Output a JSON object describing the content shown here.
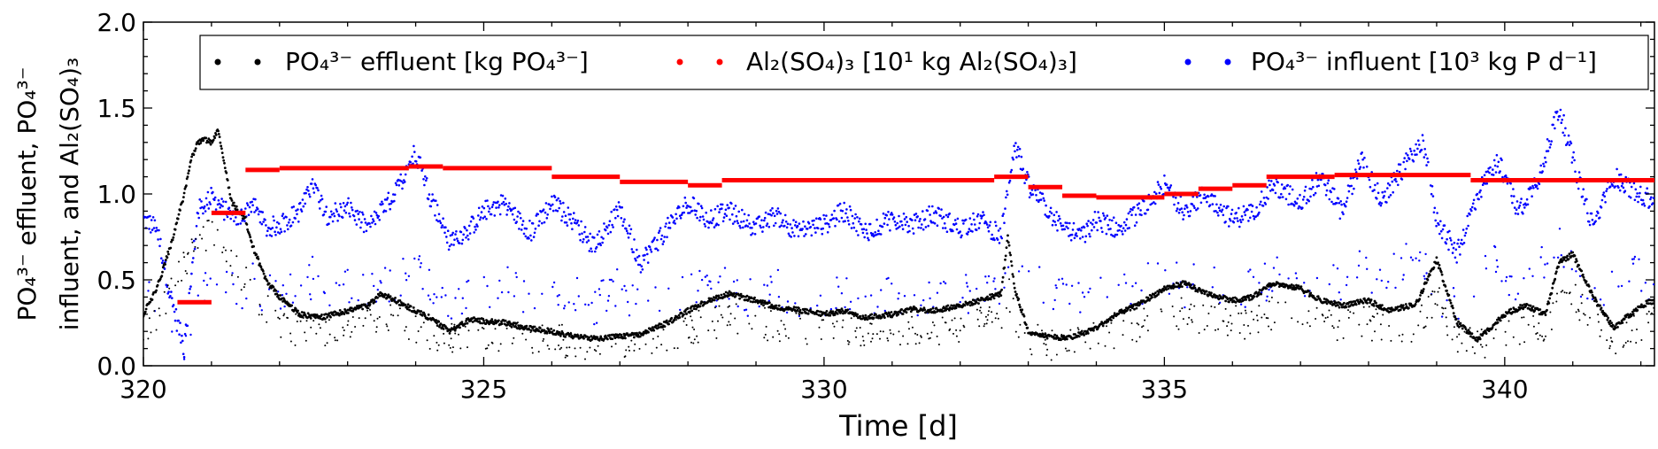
{
  "chart_data": {
    "type": "scatter",
    "xlabel": "Time [d]",
    "ylabel_line1": "PO₄³⁻ effluent, PO₄³⁻",
    "ylabel_line2": "influent, and Al₂(SO₄)₃",
    "xlim": [
      320,
      342.2
    ],
    "ylim": [
      0.0,
      2.0
    ],
    "xticks": [
      320,
      325,
      330,
      335,
      340
    ],
    "yticks": [
      0.0,
      0.5,
      1.0,
      1.5,
      2.0
    ],
    "xtick_labels": [
      "320",
      "325",
      "330",
      "335",
      "340"
    ],
    "ytick_labels": [
      "0.0",
      "0.5",
      "1.0",
      "1.5",
      "2.0"
    ],
    "legend_position": "top",
    "series": [
      {
        "name": "PO₄³⁻ effluent [kg PO₄³⁻]",
        "color": "#000000",
        "x": [
          320.0,
          320.2,
          320.4,
          320.6,
          320.7,
          320.8,
          320.9,
          321.0,
          321.1,
          321.2,
          321.3,
          321.5,
          321.6,
          321.8,
          322.0,
          322.3,
          322.6,
          323.0,
          323.3,
          323.5,
          323.7,
          324.0,
          324.2,
          324.5,
          324.8,
          325.0,
          325.3,
          325.6,
          326.0,
          326.3,
          326.6,
          327.0,
          327.3,
          327.7,
          328.0,
          328.3,
          328.6,
          329.0,
          329.3,
          329.7,
          330.0,
          330.3,
          330.6,
          331.0,
          331.3,
          331.6,
          332.0,
          332.3,
          332.6,
          332.7,
          332.8,
          333.0,
          333.3,
          333.6,
          334.0,
          334.3,
          334.6,
          335.0,
          335.3,
          335.6,
          336.0,
          336.3,
          336.6,
          337.0,
          337.3,
          337.6,
          338.0,
          338.3,
          338.7,
          339.0,
          339.3,
          339.6,
          340.0,
          340.3,
          340.6,
          340.8,
          341.0,
          341.3,
          341.6,
          342.0,
          342.2
        ],
        "y": [
          0.3,
          0.45,
          0.7,
          1.0,
          1.2,
          1.3,
          1.32,
          1.3,
          1.38,
          1.15,
          0.95,
          0.85,
          0.7,
          0.5,
          0.4,
          0.3,
          0.28,
          0.32,
          0.35,
          0.42,
          0.38,
          0.32,
          0.28,
          0.2,
          0.27,
          0.26,
          0.25,
          0.22,
          0.2,
          0.17,
          0.16,
          0.17,
          0.18,
          0.25,
          0.32,
          0.38,
          0.42,
          0.38,
          0.34,
          0.32,
          0.3,
          0.32,
          0.28,
          0.3,
          0.33,
          0.32,
          0.35,
          0.38,
          0.42,
          0.75,
          0.45,
          0.2,
          0.17,
          0.16,
          0.22,
          0.3,
          0.35,
          0.45,
          0.48,
          0.42,
          0.38,
          0.4,
          0.48,
          0.45,
          0.38,
          0.35,
          0.38,
          0.32,
          0.36,
          0.62,
          0.25,
          0.15,
          0.3,
          0.35,
          0.3,
          0.6,
          0.65,
          0.4,
          0.22,
          0.35,
          0.38
        ]
      },
      {
        "name": "Al₂(SO₄)₃ [10¹ kg Al₂(SO₄)₃]",
        "color": "#ff0000",
        "steps": [
          {
            "x0": 320.5,
            "x1": 321.0,
            "y": 0.37
          },
          {
            "x0": 321.0,
            "x1": 321.5,
            "y": 0.89
          },
          {
            "x0": 321.5,
            "x1": 322.0,
            "y": 1.14
          },
          {
            "x0": 322.0,
            "x1": 323.9,
            "y": 1.15
          },
          {
            "x0": 323.9,
            "x1": 324.4,
            "y": 1.16
          },
          {
            "x0": 324.4,
            "x1": 326.0,
            "y": 1.15
          },
          {
            "x0": 326.0,
            "x1": 327.0,
            "y": 1.1
          },
          {
            "x0": 327.0,
            "x1": 328.0,
            "y": 1.07
          },
          {
            "x0": 328.0,
            "x1": 328.5,
            "y": 1.05
          },
          {
            "x0": 328.5,
            "x1": 332.5,
            "y": 1.08
          },
          {
            "x0": 332.5,
            "x1": 333.0,
            "y": 1.1
          },
          {
            "x0": 333.0,
            "x1": 333.5,
            "y": 1.04
          },
          {
            "x0": 333.5,
            "x1": 334.0,
            "y": 0.99
          },
          {
            "x0": 334.0,
            "x1": 335.0,
            "y": 0.98
          },
          {
            "x0": 335.0,
            "x1": 335.5,
            "y": 1.0
          },
          {
            "x0": 335.5,
            "x1": 336.0,
            "y": 1.03
          },
          {
            "x0": 336.0,
            "x1": 336.5,
            "y": 1.05
          },
          {
            "x0": 336.5,
            "x1": 337.5,
            "y": 1.1
          },
          {
            "x0": 337.5,
            "x1": 339.5,
            "y": 1.11
          },
          {
            "x0": 339.5,
            "x1": 342.2,
            "y": 1.08
          }
        ]
      },
      {
        "name": "PO₄³⁻ influent [10³ kg P d⁻¹]",
        "color": "#0000ff",
        "x": [
          320.0,
          320.2,
          320.4,
          320.6,
          320.8,
          321.0,
          321.2,
          321.4,
          321.6,
          321.8,
          322.0,
          322.3,
          322.5,
          322.7,
          323.0,
          323.3,
          323.5,
          323.7,
          324.0,
          324.2,
          324.5,
          324.8,
          325.0,
          325.3,
          325.5,
          325.7,
          326.0,
          326.3,
          326.6,
          327.0,
          327.3,
          327.6,
          328.0,
          328.3,
          328.6,
          329.0,
          329.3,
          329.6,
          330.0,
          330.3,
          330.6,
          331.0,
          331.3,
          331.6,
          332.0,
          332.3,
          332.6,
          332.8,
          333.0,
          333.2,
          333.5,
          333.8,
          334.0,
          334.3,
          334.6,
          335.0,
          335.3,
          335.6,
          336.0,
          336.3,
          336.6,
          337.0,
          337.3,
          337.6,
          337.9,
          338.2,
          338.5,
          338.8,
          339.0,
          339.3,
          339.6,
          339.9,
          340.2,
          340.5,
          340.8,
          341.0,
          341.3,
          341.6,
          342.0,
          342.2
        ],
        "y": [
          0.85,
          0.8,
          0.4,
          0.1,
          0.9,
          0.98,
          0.9,
          0.85,
          0.95,
          0.8,
          0.82,
          0.9,
          1.05,
          0.88,
          0.92,
          0.8,
          0.9,
          1.0,
          1.25,
          1.0,
          0.72,
          0.8,
          0.9,
          0.95,
          0.85,
          0.78,
          0.95,
          0.85,
          0.7,
          0.9,
          0.6,
          0.75,
          0.95,
          0.85,
          0.9,
          0.8,
          0.88,
          0.78,
          0.82,
          0.9,
          0.78,
          0.85,
          0.82,
          0.88,
          0.8,
          0.85,
          0.75,
          1.3,
          1.05,
          0.95,
          0.8,
          0.75,
          0.85,
          0.8,
          0.88,
          1.05,
          0.9,
          1.0,
          0.85,
          0.9,
          1.05,
          0.95,
          1.1,
          0.9,
          1.2,
          0.95,
          1.15,
          1.3,
          0.85,
          0.65,
          1.0,
          1.2,
          0.9,
          1.1,
          1.5,
          1.2,
          0.8,
          1.1,
          1.0,
          0.95
        ]
      }
    ]
  }
}
